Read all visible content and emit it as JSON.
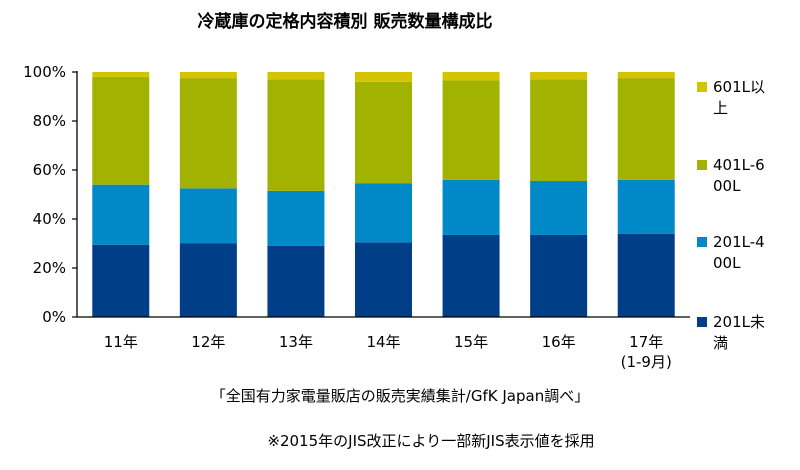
{
  "chart_data": {
    "type": "bar",
    "stacked": true,
    "title": "冷蔵庫の定格内容積別 販売数量構成比",
    "categories": [
      [
        "11年"
      ],
      [
        "12年"
      ],
      [
        "13年"
      ],
      [
        "14年"
      ],
      [
        "15年"
      ],
      [
        "16年"
      ],
      [
        "17年",
        "(1-9月)"
      ]
    ],
    "y_ticks": [
      "0%",
      "20%",
      "40%",
      "60%",
      "80%",
      "100%"
    ],
    "ylim": [
      0,
      100
    ],
    "grid": false,
    "legend_position": "right",
    "series": [
      {
        "name": [
          "201L未",
          "満"
        ],
        "color": "#003f87",
        "values": [
          29.5,
          30,
          29,
          30.5,
          33.5,
          33.5,
          34
        ]
      },
      {
        "name": [
          "201L-4",
          "00L"
        ],
        "color": "#0088c7",
        "values": [
          24.5,
          22.5,
          22.5,
          24,
          22.5,
          22,
          22
        ]
      },
      {
        "name": [
          "401L-6",
          "00L"
        ],
        "color": "#a2b200",
        "values": [
          44,
          45,
          45.5,
          41.5,
          40.5,
          41.5,
          41.5
        ]
      },
      {
        "name": [
          "601L以",
          "上"
        ],
        "color": "#d4c400",
        "values": [
          2,
          2.5,
          3,
          4,
          3.5,
          3,
          2.5
        ]
      }
    ],
    "source": "「全国有力家電量販店の販売実績集計/GfK Japan調べ」",
    "note": "※2015年のJIS改正により一部新JIS表示値を採用"
  }
}
